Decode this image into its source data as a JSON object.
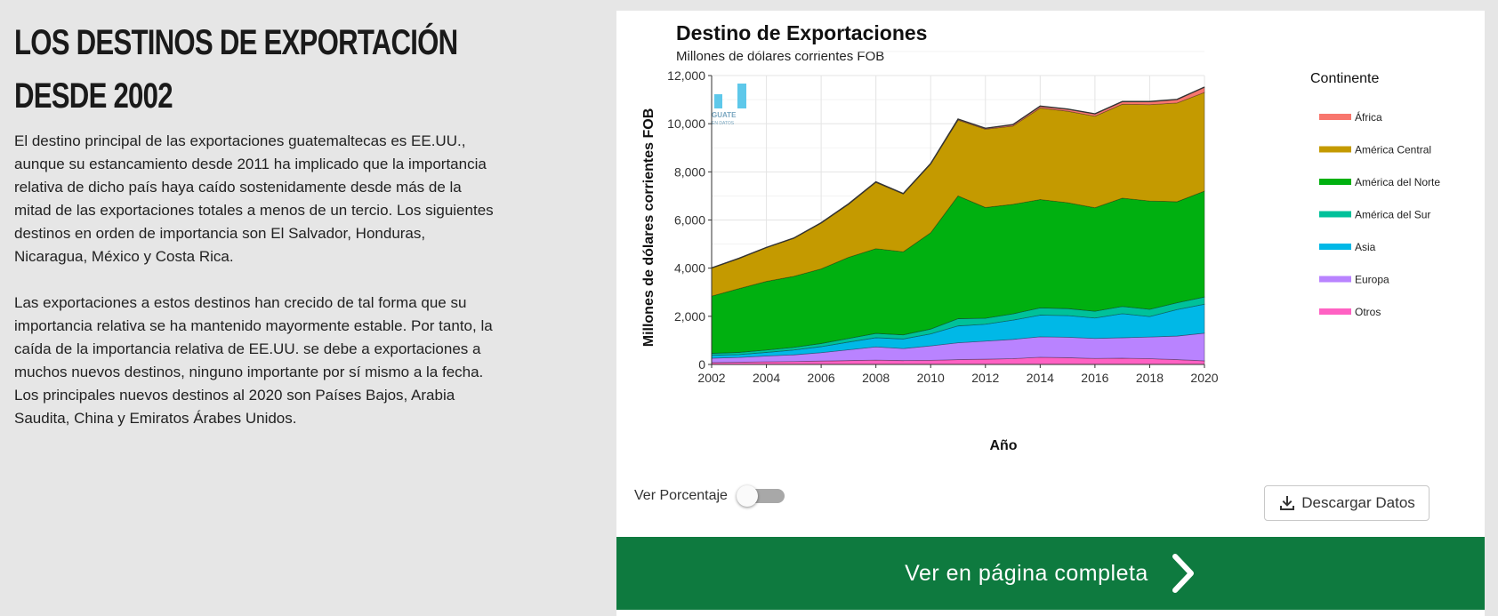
{
  "left": {
    "title": "Los destinos de exportación desde 2002",
    "paragraphs": [
      "El destino principal de las exportaciones guatemaltecas es EE.UU., aunque su estancamiento desde 2011 ha implicado que la importancia relativa de dicho país haya caído sostenidamente desde más de la mitad de las exportaciones totales a menos de un tercio. Los siguientes destinos en orden de importancia son El Salvador, Honduras, Nicaragua, México y Costa Rica.",
      "Las exportaciones a estos destinos han crecido de tal forma que su importancia relativa se ha mantenido mayormente estable. Por tanto, la caída de la importancia relativa de EE.UU. se debe a exportaciones a muchos nuevos destinos, ninguno importante por sí mismo a la fecha. Los principales nuevos destinos al 2020 son Países Bajos, Arabia Saudita, China y Emiratos Árabes Unidos."
    ]
  },
  "controls": {
    "toggle_label": "Ver Porcentaje",
    "download_label": "Descargar Datos",
    "cta_label": "Ver en página completa"
  },
  "logo": {
    "text_main": "GUATE",
    "text_sub": "EN DATOS"
  },
  "colors": {
    "cta": "#0e7a3f",
    "toggle_track": "#a8a8a8"
  },
  "chart_data": {
    "type": "area",
    "title": "Destino de Exportaciones",
    "subtitle": "Millones de dólares corrientes FOB",
    "xlabel": "Año",
    "ylabel": "Millones de dólares corrientes FOB",
    "ylim": [
      0,
      12000
    ],
    "xlim": [
      2002,
      2020
    ],
    "x_ticks": [
      2002,
      2004,
      2006,
      2008,
      2010,
      2012,
      2014,
      2016,
      2018,
      2020
    ],
    "y_ticks": [
      0,
      2000,
      4000,
      6000,
      8000,
      10000,
      12000
    ],
    "y_tick_labels": [
      "0",
      "2,000",
      "4,000",
      "6,000",
      "8,000",
      "10,000",
      "12,000"
    ],
    "legend_title": "Continente",
    "legend_position": "right",
    "grid": true,
    "x": [
      2002,
      2003,
      2004,
      2005,
      2006,
      2007,
      2008,
      2009,
      2010,
      2011,
      2012,
      2013,
      2014,
      2015,
      2016,
      2017,
      2018,
      2019,
      2020
    ],
    "series": [
      {
        "name": "Otros",
        "color": "#ff61c3",
        "values": [
          80,
          90,
          110,
          120,
          140,
          160,
          180,
          160,
          170,
          200,
          220,
          240,
          300,
          280,
          250,
          260,
          240,
          200,
          150
        ]
      },
      {
        "name": "Europa",
        "color": "#b983ff",
        "values": [
          180,
          200,
          240,
          280,
          350,
          450,
          550,
          500,
          600,
          700,
          750,
          800,
          850,
          850,
          830,
          850,
          900,
          980,
          1150
        ]
      },
      {
        "name": "Asia",
        "color": "#00b8e7",
        "values": [
          120,
          120,
          150,
          200,
          250,
          320,
          380,
          400,
          500,
          700,
          700,
          800,
          900,
          900,
          850,
          1000,
          850,
          1100,
          1200
        ]
      },
      {
        "name": "América del Sur",
        "color": "#00c19a",
        "values": [
          80,
          90,
          100,
          110,
          130,
          150,
          180,
          170,
          200,
          300,
          250,
          260,
          300,
          290,
          280,
          300,
          300,
          280,
          300
        ]
      },
      {
        "name": "América del Norte",
        "color": "#00b010",
        "values": [
          2380,
          2650,
          2850,
          2950,
          3100,
          3370,
          3520,
          3450,
          4000,
          5100,
          4600,
          4550,
          4500,
          4400,
          4300,
          4500,
          4500,
          4200,
          4400
        ]
      },
      {
        "name": "América Central",
        "color": "#c49a00",
        "values": [
          1160,
          1250,
          1400,
          1580,
          1900,
          2200,
          2750,
          2400,
          2850,
          3150,
          3250,
          3250,
          3800,
          3800,
          3800,
          3900,
          4000,
          4100,
          4100
        ]
      },
      {
        "name": "África",
        "color": "#f8766d",
        "values": [
          10,
          10,
          10,
          10,
          15,
          20,
          25,
          20,
          25,
          40,
          40,
          60,
          80,
          90,
          100,
          110,
          130,
          150,
          220
        ]
      }
    ],
    "legend_order": [
      "África",
      "América Central",
      "América del Norte",
      "América del Sur",
      "Asia",
      "Europa",
      "Otros"
    ]
  }
}
